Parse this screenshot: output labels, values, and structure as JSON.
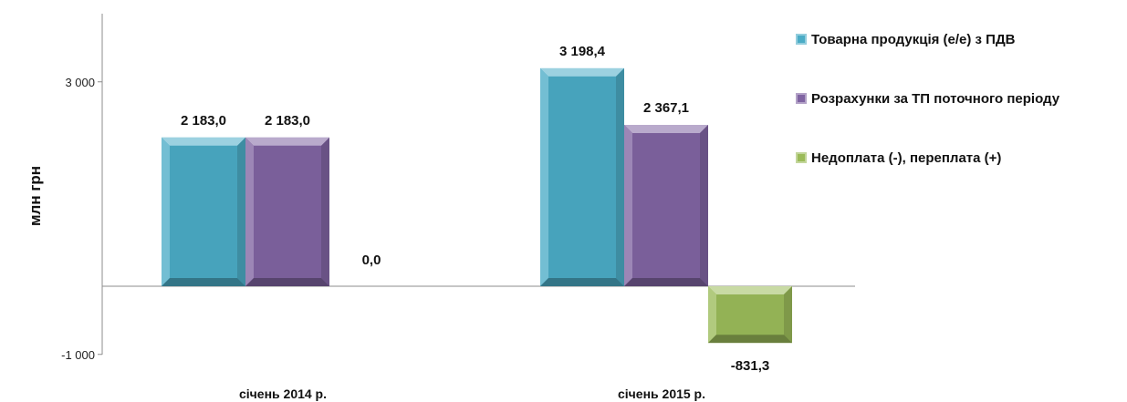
{
  "chart_data": {
    "type": "bar",
    "title": "",
    "xlabel": "",
    "ylabel": "млн грн",
    "categories": [
      "січень 2014 р.",
      "січень 2015 р."
    ],
    "series": [
      {
        "name": "Товарна продукція (е/е) з ПДВ",
        "values": [
          2183.0,
          3198.4
        ],
        "labels": [
          "2 183,0",
          "3 198,4"
        ],
        "color": "#4bacc6"
      },
      {
        "name": "Розрахунки за ТП поточного періоду",
        "values": [
          2183.0,
          2367.1
        ],
        "labels": [
          "2 183,0",
          "2 367,1"
        ],
        "color": "#8064a2"
      },
      {
        "name": "Недоплата (-), переплата (+)",
        "values": [
          0.0,
          -831.3
        ],
        "labels": [
          "0,0",
          "-831,3"
        ],
        "color": "#9bbb59"
      }
    ],
    "yticks": [
      {
        "value": 3000,
        "label": "3 000"
      },
      {
        "value": -1000,
        "label": "-1 000"
      }
    ],
    "ylim": [
      -1000,
      4000
    ],
    "grid": false,
    "legend_position": "right"
  }
}
